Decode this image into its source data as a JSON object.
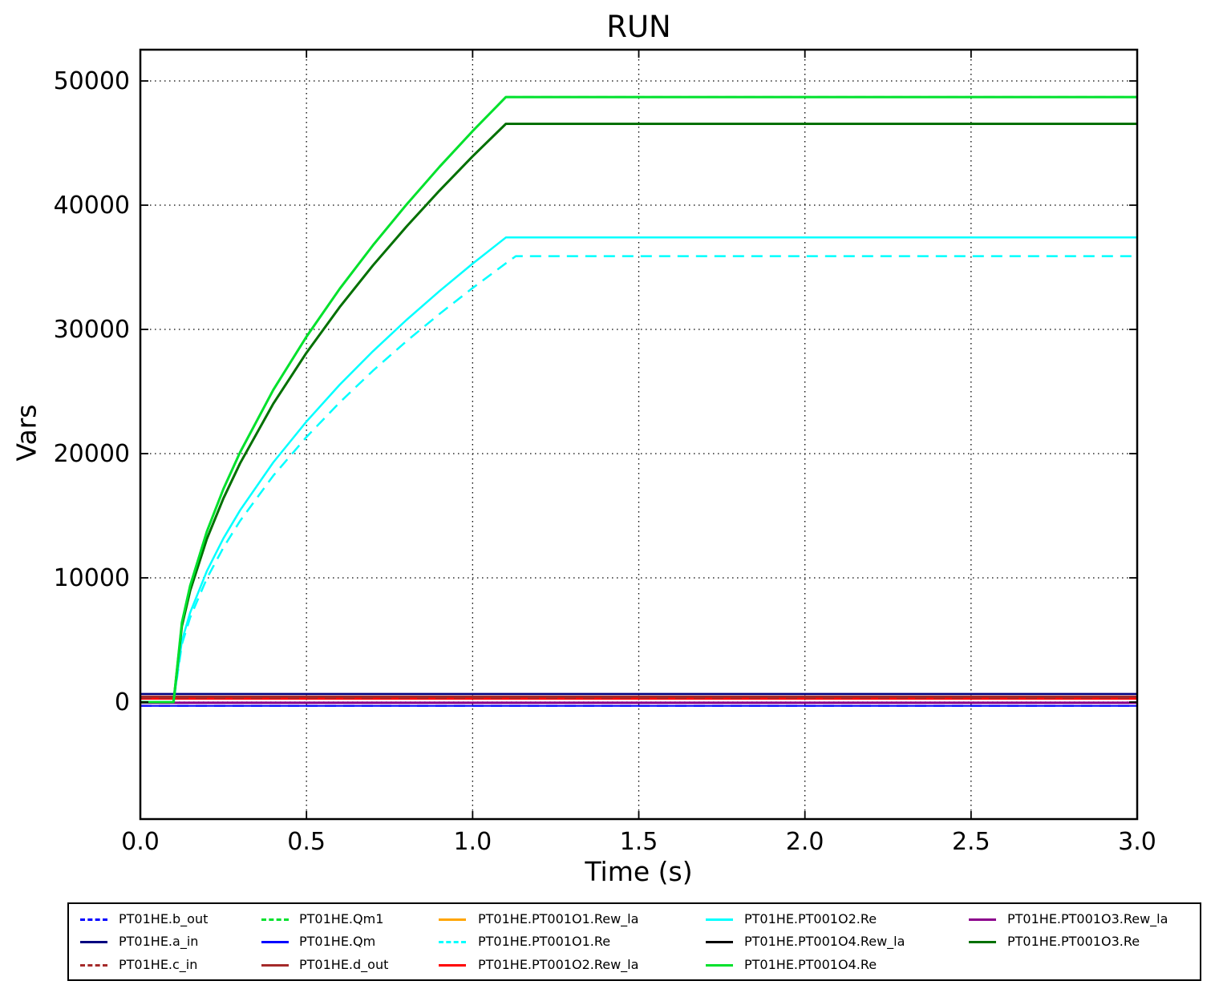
{
  "chart_data": {
    "type": "line",
    "title": "RUN",
    "xlabel": "Time (s)",
    "ylabel": "Vars",
    "xlim": [
      0.0,
      3.0
    ],
    "ylim": [
      -9419,
      52516
    ],
    "xticks": [
      0.0,
      0.5,
      1.0,
      1.5,
      2.0,
      2.5,
      3.0
    ],
    "xtick_labels": [
      "0.0",
      "0.5",
      "1.0",
      "1.5",
      "2.0",
      "2.5",
      "3.0"
    ],
    "yticks": [
      0,
      10000,
      20000,
      30000,
      40000,
      50000
    ],
    "ytick_labels": [
      "0",
      "10000",
      "20000",
      "30000",
      "40000",
      "50000"
    ],
    "grid": "dotted",
    "legend_position": "bottom",
    "series": [
      {
        "name": "PT01HE.PT001O1.Rew_la",
        "color": "#FFA500",
        "style": "solid",
        "width": 2.5,
        "t": [
          0,
          3
        ],
        "v": [
          350,
          350
        ]
      },
      {
        "name": "PT01HE.PT001O4.Rew_la",
        "color": "#000000",
        "style": "solid",
        "width": 2.5,
        "t": [
          0,
          3
        ],
        "v": [
          -60,
          -60
        ]
      },
      {
        "name": "PT01HE.Qm1",
        "color": "#00E12C",
        "style": "dashed",
        "width": 2.5,
        "t": [
          0,
          0.1,
          0.125,
          0.15,
          0.2,
          0.25,
          0.3,
          0.4,
          0.5,
          0.6,
          0.7,
          0.8,
          0.9,
          1.0,
          1.1,
          3.0
        ],
        "v": [
          0,
          0,
          6400,
          9370,
          13720,
          17160,
          20100,
          25120,
          29420,
          33270,
          36770,
          40020,
          43080,
          45960,
          48700,
          48700
        ]
      },
      {
        "name": "PT01HE.PT001O2.Rew_la",
        "color": "#FF0000",
        "style": "solid",
        "width": 2.5,
        "t": [
          0,
          3
        ],
        "v": [
          270,
          270
        ]
      },
      {
        "name": "PT01HE.d_out",
        "color": "#A52A2A",
        "style": "solid",
        "width": 3,
        "t": [
          0,
          3
        ],
        "v": [
          430,
          430
        ]
      },
      {
        "name": "PT01HE.c_in",
        "color": "#A52A2A",
        "style": "dashed",
        "width": 2.5,
        "t": [
          0,
          3
        ],
        "v": [
          350,
          350
        ]
      },
      {
        "name": "PT01HE.PT001O3.Rew_la",
        "color": "#8B008B",
        "style": "solid",
        "width": 3,
        "t": [
          0,
          3
        ],
        "v": [
          -60,
          -60
        ]
      },
      {
        "name": "PT01HE.Qm",
        "color": "#0000FF",
        "style": "solid",
        "width": 2,
        "t": [
          0,
          3
        ],
        "v": [
          -300,
          -300
        ]
      },
      {
        "name": "PT01HE.b_out",
        "color": "#0000FF",
        "style": "dashed",
        "width": 2,
        "t": [
          0,
          3
        ],
        "v": [
          -300,
          -300
        ]
      },
      {
        "name": "PT01HE.a_in",
        "color": "#000080",
        "style": "solid",
        "width": 2.5,
        "t": [
          0,
          3
        ],
        "v": [
          650,
          650
        ]
      },
      {
        "name": "PT01HE.PT001O1.Re",
        "color": "#00FFFF",
        "style": "dashed",
        "width": 2.5,
        "t": [
          0,
          0.1,
          0.125,
          0.15,
          0.2,
          0.25,
          0.3,
          0.4,
          0.5,
          0.6,
          0.7,
          0.8,
          0.9,
          1.0,
          1.1,
          1.13,
          3.0
        ],
        "v": [
          0,
          0,
          4650,
          6800,
          9950,
          12440,
          14580,
          18220,
          21340,
          24120,
          26670,
          29030,
          31240,
          33330,
          35320,
          35900,
          35900
        ]
      },
      {
        "name": "PT01HE.PT001O2.Re",
        "color": "#00FFFF",
        "style": "solid",
        "width": 2.5,
        "t": [
          0,
          0.1,
          0.125,
          0.15,
          0.2,
          0.25,
          0.3,
          0.4,
          0.5,
          0.6,
          0.7,
          0.8,
          0.9,
          1.0,
          1.1,
          3.0
        ],
        "v": [
          0,
          0,
          4920,
          7200,
          10540,
          13180,
          15430,
          19290,
          22590,
          25550,
          28240,
          30740,
          33080,
          35290,
          37400,
          37400
        ]
      },
      {
        "name": "PT01HE.PT001O3.Re",
        "color": "#007000",
        "style": "solid",
        "width": 3,
        "t": [
          0,
          0.1,
          0.125,
          0.15,
          0.2,
          0.25,
          0.3,
          0.4,
          0.5,
          0.6,
          0.7,
          0.8,
          0.9,
          1.0,
          1.1,
          3.0
        ],
        "v": [
          0,
          0,
          6120,
          8960,
          13120,
          16400,
          19210,
          24010,
          28120,
          31800,
          35150,
          38250,
          41170,
          43930,
          46550,
          46550
        ]
      },
      {
        "name": "PT01HE.PT001O4.Re",
        "color": "#00E12C",
        "style": "solid",
        "width": 3,
        "t": [
          0,
          0.1,
          0.125,
          0.15,
          0.2,
          0.25,
          0.3,
          0.4,
          0.5,
          0.6,
          0.7,
          0.8,
          0.9,
          1.0,
          1.1,
          3.0
        ],
        "v": [
          0,
          0,
          6400,
          9370,
          13720,
          17160,
          20100,
          25120,
          29420,
          33270,
          36770,
          40020,
          43080,
          45960,
          48700,
          48700
        ]
      }
    ]
  },
  "legend": {
    "columns": [
      [
        "PT01HE.b_out",
        "PT01HE.a_in",
        "PT01HE.c_in"
      ],
      [
        "PT01HE.Qm1",
        "PT01HE.Qm",
        "PT01HE.d_out"
      ],
      [
        "PT01HE.PT001O1.Rew_la",
        "PT01HE.PT001O1.Re",
        "PT01HE.PT001O2.Rew_la"
      ],
      [
        "PT01HE.PT001O2.Re",
        "PT01HE.PT001O4.Rew_la",
        "PT01HE.PT001O4.Re"
      ],
      [
        "PT01HE.PT001O3.Rew_la",
        "PT01HE.PT001O3.Re"
      ]
    ]
  }
}
